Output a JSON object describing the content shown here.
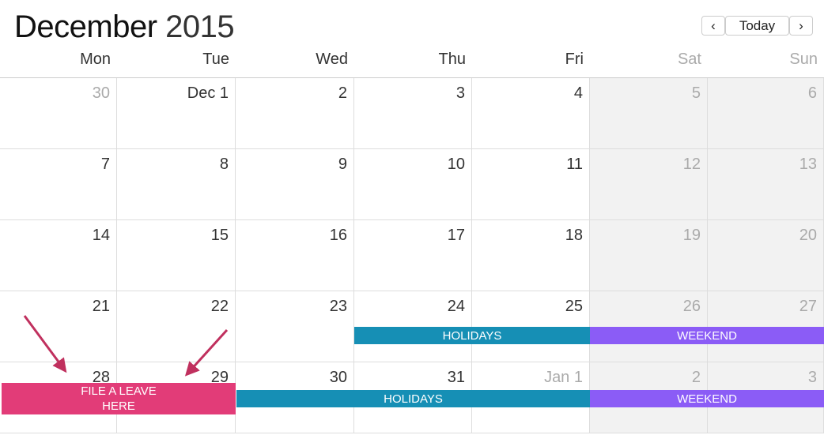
{
  "header": {
    "month": "December",
    "year": "2015",
    "prev_icon": "chevron-left-icon",
    "today_label": "Today",
    "next_icon": "chevron-right-icon"
  },
  "weekdays": [
    "Mon",
    "Tue",
    "Wed",
    "Thu",
    "Fri",
    "Sat",
    "Sun"
  ],
  "weeks": [
    [
      "30",
      "Dec 1",
      "2",
      "3",
      "4",
      "5",
      "6"
    ],
    [
      "7",
      "8",
      "9",
      "10",
      "11",
      "12",
      "13"
    ],
    [
      "14",
      "15",
      "16",
      "17",
      "18",
      "19",
      "20"
    ],
    [
      "21",
      "22",
      "23",
      "24",
      "25",
      "26",
      "27"
    ],
    [
      "28",
      "29",
      "30",
      "31",
      "Jan 1",
      "2",
      "3"
    ]
  ],
  "events": [
    {
      "label": "HOLIDAYS",
      "color": "#168fb5"
    },
    {
      "label": "WEEKEND",
      "color": "#8b5cf6"
    },
    {
      "label": "FILE A LEAVE HERE",
      "color": "#e23c78"
    },
    {
      "label": "HOLIDAYS",
      "color": "#168fb5"
    },
    {
      "label": "WEEKEND",
      "color": "#8b5cf6"
    }
  ],
  "annotation_color": "#c0305e"
}
